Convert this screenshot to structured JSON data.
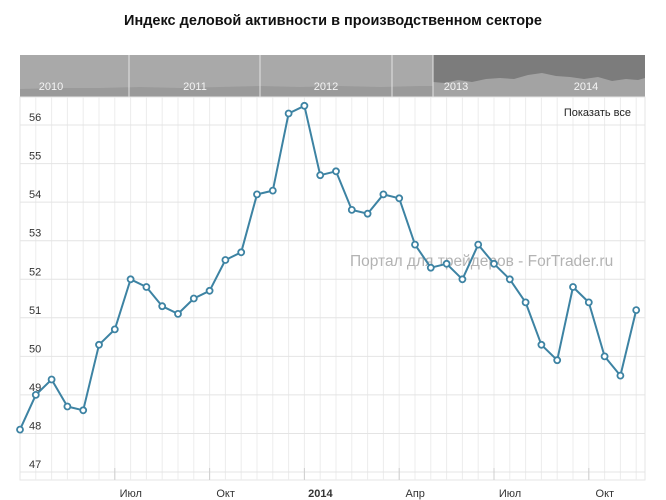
{
  "title": "Индекс деловой активности в производственном секторе",
  "reset_label": "Показать все",
  "watermark": "Портал для трейдеров - ForTrader.ru",
  "navigator": {
    "years": [
      "2010",
      "2011",
      "2012",
      "2013",
      "2014"
    ],
    "selected_years": [
      "2013",
      "2014"
    ]
  },
  "colors": {
    "line": "#3d83a3",
    "nav_bg": "#a9a9a9",
    "nav_selected": "#7c7c7c"
  },
  "chart_data": {
    "type": "line",
    "title": "Индекс деловой активности в производственном секторе",
    "xlabel": "",
    "ylabel": "",
    "ylim": [
      47,
      56.9
    ],
    "yticks": [
      47,
      48,
      49,
      50,
      51,
      52,
      53,
      54,
      55,
      56
    ],
    "x_ticks": [
      {
        "x": "2013-07-01",
        "label": "Июл",
        "bold": false
      },
      {
        "x": "2013-10-01",
        "label": "Окт",
        "bold": false
      },
      {
        "x": "2014-01-01",
        "label": "2014",
        "bold": true
      },
      {
        "x": "2014-04-01",
        "label": "Апр",
        "bold": false
      },
      {
        "x": "2014-07-01",
        "label": "Июл",
        "bold": false
      },
      {
        "x": "2014-10-01",
        "label": "Окт",
        "bold": false
      }
    ],
    "grid": true,
    "series": [
      {
        "points": [
          {
            "x": "2013-04-01",
            "y": 48.1
          },
          {
            "x": "2013-04-16",
            "y": 49.0
          },
          {
            "x": "2013-05-01",
            "y": 49.4
          },
          {
            "x": "2013-05-16",
            "y": 48.7
          },
          {
            "x": "2013-06-01",
            "y": 48.6
          },
          {
            "x": "2013-06-16",
            "y": 50.3
          },
          {
            "x": "2013-07-01",
            "y": 50.7
          },
          {
            "x": "2013-07-16",
            "y": 52.0
          },
          {
            "x": "2013-08-01",
            "y": 51.8
          },
          {
            "x": "2013-08-16",
            "y": 51.3
          },
          {
            "x": "2013-09-01",
            "y": 51.1
          },
          {
            "x": "2013-09-16",
            "y": 51.5
          },
          {
            "x": "2013-10-01",
            "y": 51.7
          },
          {
            "x": "2013-10-16",
            "y": 52.5
          },
          {
            "x": "2013-11-01",
            "y": 52.7
          },
          {
            "x": "2013-11-16",
            "y": 54.2
          },
          {
            "x": "2013-12-01",
            "y": 54.3
          },
          {
            "x": "2013-12-16",
            "y": 56.3
          },
          {
            "x": "2014-01-01",
            "y": 56.5
          },
          {
            "x": "2014-01-16",
            "y": 54.7
          },
          {
            "x": "2014-02-01",
            "y": 54.8
          },
          {
            "x": "2014-02-16",
            "y": 53.8
          },
          {
            "x": "2014-03-01",
            "y": 53.7
          },
          {
            "x": "2014-03-16",
            "y": 54.2
          },
          {
            "x": "2014-04-01",
            "y": 54.1
          },
          {
            "x": "2014-04-16",
            "y": 52.9
          },
          {
            "x": "2014-05-01",
            "y": 52.3
          },
          {
            "x": "2014-05-16",
            "y": 52.4
          },
          {
            "x": "2014-06-01",
            "y": 52.0
          },
          {
            "x": "2014-06-16",
            "y": 52.9
          },
          {
            "x": "2014-07-01",
            "y": 52.4
          },
          {
            "x": "2014-07-16",
            "y": 52.0
          },
          {
            "x": "2014-08-01",
            "y": 51.4
          },
          {
            "x": "2014-08-16",
            "y": 50.3
          },
          {
            "x": "2014-09-01",
            "y": 49.9
          },
          {
            "x": "2014-09-16",
            "y": 51.8
          },
          {
            "x": "2014-10-01",
            "y": 51.4
          },
          {
            "x": "2014-10-16",
            "y": 50.0
          },
          {
            "x": "2014-11-01",
            "y": 49.5
          },
          {
            "x": "2014-11-16",
            "y": 51.2
          }
        ]
      }
    ]
  }
}
